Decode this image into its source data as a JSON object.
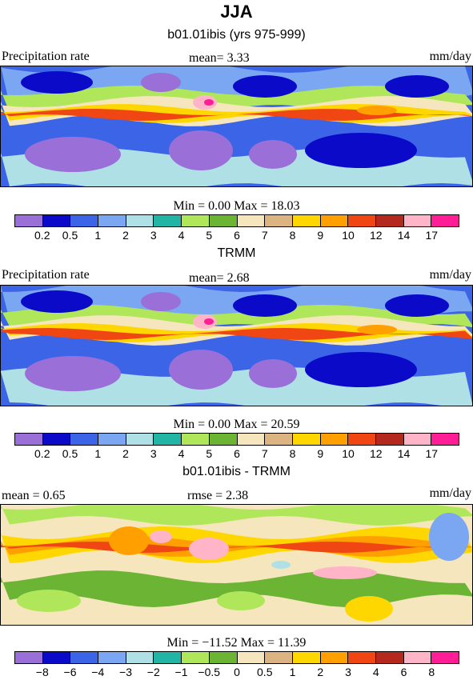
{
  "season": "JJA",
  "colors": {
    "precip": [
      "#9b6fd8",
      "#0a0ac8",
      "#3c64e6",
      "#7aa6f2",
      "#aee0e6",
      "#22b4a4",
      "#b0e65a",
      "#6cb434",
      "#f6e6be",
      "#dcb482",
      "#ffd700",
      "#ffa000",
      "#f04614",
      "#b4281e",
      "#ffb4c8",
      "#ff1e96"
    ],
    "diff": [
      "#9b6fd8",
      "#0a0ac8",
      "#3c64e6",
      "#7aa6f2",
      "#aee0e6",
      "#22b4a4",
      "#b0e65a",
      "#6cb434",
      "#f6e6be",
      "#dcb482",
      "#ffd700",
      "#ffa000",
      "#f04614",
      "#b4281e",
      "#ffb4c8",
      "#ff1e96"
    ]
  },
  "panels": [
    {
      "title": "b01.01ibis (yrs 975-999)",
      "left_label": "Precipitation rate",
      "center_label": "mean=   3.33",
      "right_label": "mm/day",
      "minmax": "Min =    0.00 Max =   18.03",
      "ticks": [
        "0.2",
        "0.5",
        "1",
        "2",
        "3",
        "4",
        "5",
        "6",
        "7",
        "8",
        "9",
        "10",
        "12",
        "14",
        "17"
      ],
      "colorscale": "precip"
    },
    {
      "title": "TRMM",
      "left_label": "Precipitation rate",
      "center_label": "mean=   2.68",
      "right_label": "mm/day",
      "minmax": "Min =    0.00 Max =   20.59",
      "ticks": [
        "0.2",
        "0.5",
        "1",
        "2",
        "3",
        "4",
        "5",
        "6",
        "7",
        "8",
        "9",
        "10",
        "12",
        "14",
        "17"
      ],
      "colorscale": "precip"
    },
    {
      "title": "b01.01ibis - TRMM",
      "left_label": "mean =     0.65",
      "center_label": "rmse =    2.38",
      "right_label": "mm/day",
      "minmax": "Min = −11.52 Max =   11.39",
      "ticks": [
        "−8",
        "−6",
        "−4",
        "−3",
        "−2",
        "−1",
        "−0.5",
        "0",
        "0.5",
        "1",
        "2",
        "3",
        "4",
        "6",
        "8"
      ],
      "colorscale": "diff"
    }
  ]
}
